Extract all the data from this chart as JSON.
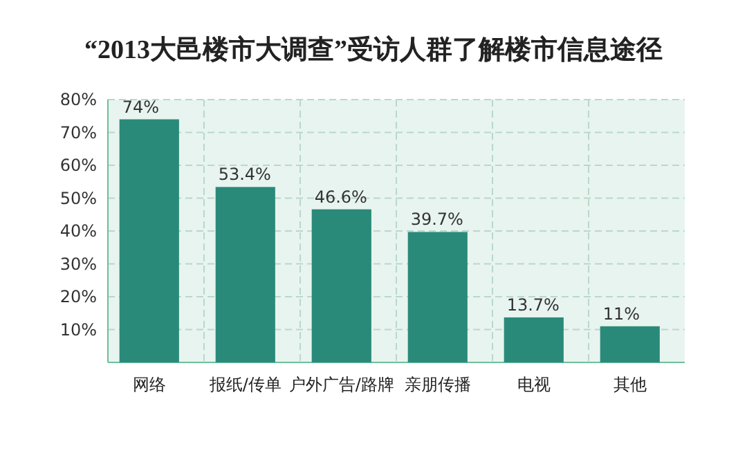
{
  "chart_data": {
    "type": "bar",
    "title": "“2013大邑楼市大调查”受访人群了解楼市信息途径",
    "categories": [
      "网络",
      "报纸/传单",
      "户外广告/路牌",
      "亲朋传播",
      "电视",
      "其他"
    ],
    "values": [
      74,
      53.4,
      46.6,
      39.7,
      13.7,
      11
    ],
    "value_labels": [
      "74%",
      "53.4%",
      "46.6%",
      "39.7%",
      "13.7%",
      "11%"
    ],
    "color": "#2a8a7a",
    "ylim": [
      0,
      80
    ],
    "yticks": [
      {
        "value": 10,
        "label": "10%"
      },
      {
        "value": 20,
        "label": "20%"
      },
      {
        "value": 30,
        "label": "30%"
      },
      {
        "value": 40,
        "label": "40%"
      },
      {
        "value": 50,
        "label": "50%"
      },
      {
        "value": 60,
        "label": "60%"
      },
      {
        "value": 70,
        "label": "70%"
      },
      {
        "value": 80,
        "label": "80%"
      }
    ],
    "grid": true
  }
}
